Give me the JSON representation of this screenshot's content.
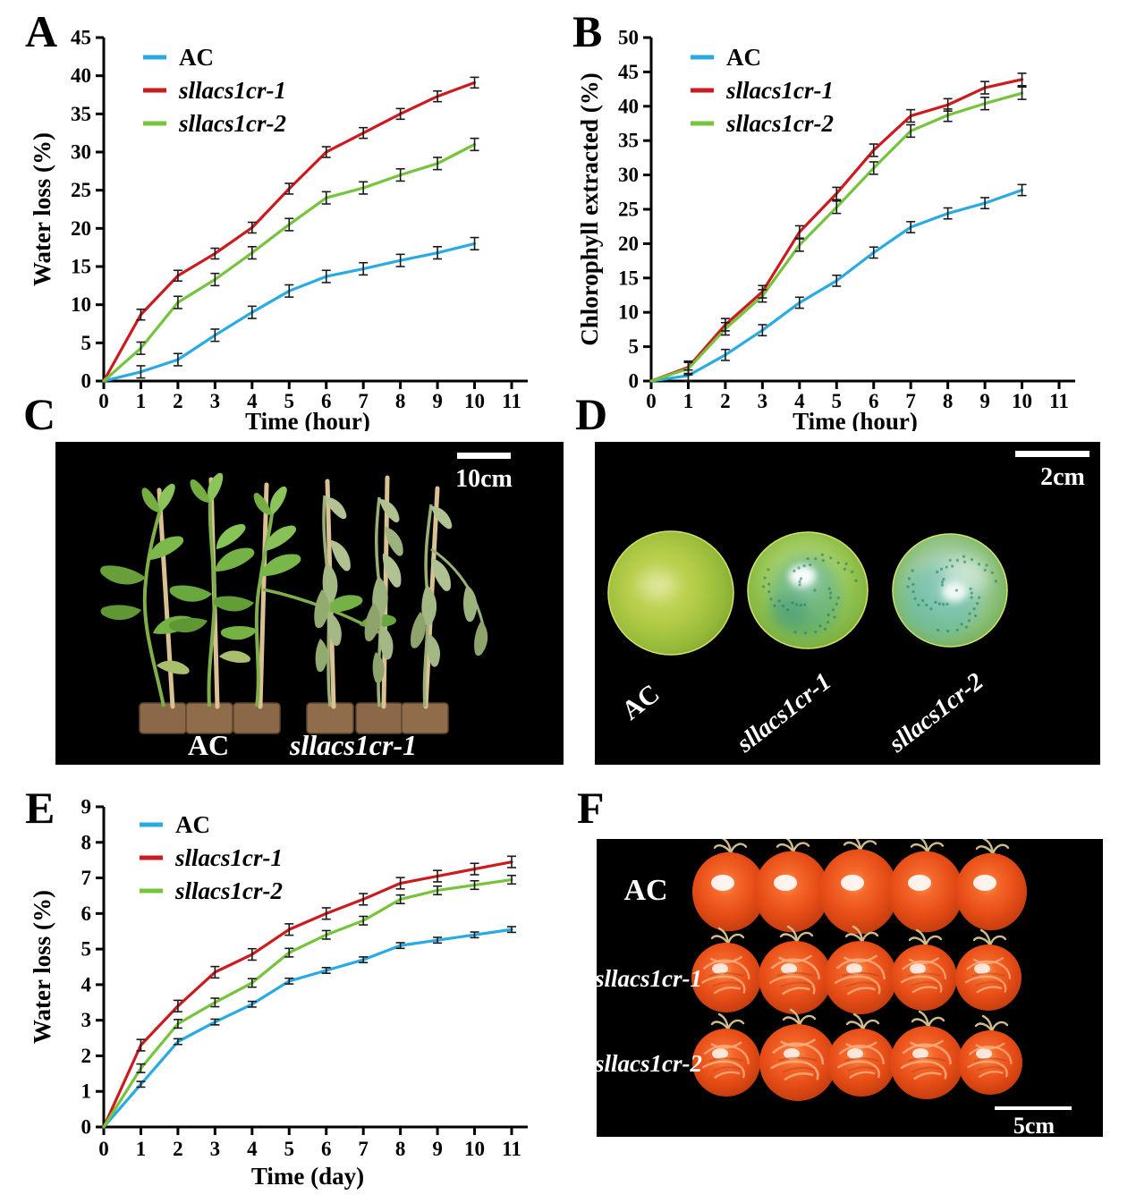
{
  "figure": {
    "panel_letters": [
      "A",
      "B",
      "C",
      "D",
      "E",
      "F"
    ]
  },
  "chart_data": [
    {
      "id": "A",
      "type": "line",
      "title": "",
      "xlabel": "Time (hour)",
      "ylabel": "Water loss (%)",
      "x": [
        0,
        1,
        2,
        3,
        4,
        5,
        6,
        7,
        8,
        9,
        10
      ],
      "xticks": [
        0,
        1,
        2,
        3,
        4,
        5,
        6,
        7,
        8,
        9,
        10,
        11
      ],
      "xlim": [
        0,
        11.5
      ],
      "ylim": [
        0,
        45
      ],
      "ytick_step": 5,
      "grid": false,
      "legend_position": "top-left",
      "series": [
        {
          "name": "AC",
          "color": "#29abe2",
          "values": [
            0,
            1.2,
            2.8,
            6,
            9,
            11.8,
            13.7,
            14.7,
            15.8,
            16.8,
            18
          ],
          "err": 0.8
        },
        {
          "name": "sllacs1cr-1",
          "color": "#cb1b1e",
          "values": [
            0,
            8.7,
            13.8,
            16.7,
            20.1,
            25.2,
            30,
            32.5,
            35,
            37.3,
            39.1
          ],
          "err": 0.7
        },
        {
          "name": "sllacs1cr-2",
          "color": "#76c33c",
          "values": [
            0,
            4.3,
            10.3,
            13.3,
            16.8,
            20.5,
            24,
            25.3,
            27,
            28.5,
            31
          ],
          "err": 0.8
        }
      ]
    },
    {
      "id": "B",
      "type": "line",
      "title": "",
      "xlabel": "Time (hour)",
      "ylabel": "Chlorophyll extracted (%)",
      "x": [
        0,
        1,
        2,
        3,
        4,
        5,
        6,
        7,
        8,
        9,
        10
      ],
      "xticks": [
        0,
        1,
        2,
        3,
        4,
        5,
        6,
        7,
        8,
        9,
        10,
        11
      ],
      "xlim": [
        0,
        11.5
      ],
      "ylim": [
        0,
        50
      ],
      "ytick_step": 5,
      "grid": false,
      "legend_position": "top-left",
      "series": [
        {
          "name": "AC",
          "color": "#29abe2",
          "values": [
            0,
            0.8,
            3.8,
            7.4,
            11.4,
            14.6,
            18.7,
            22.4,
            24.4,
            25.9,
            27.8
          ],
          "err": 0.8
        },
        {
          "name": "sllacs1cr-1",
          "color": "#cb1b1e",
          "values": [
            0,
            2,
            8.2,
            13,
            21.7,
            27.3,
            33.6,
            38.6,
            40.2,
            42.7,
            43.9
          ],
          "err": 0.9
        },
        {
          "name": "sllacs1cr-2",
          "color": "#76c33c",
          "values": [
            0,
            1.8,
            7.6,
            12.4,
            19.8,
            25.3,
            31,
            36.4,
            38.7,
            40.4,
            41.9
          ],
          "err": 0.9
        }
      ]
    },
    {
      "id": "E",
      "type": "line",
      "title": "",
      "xlabel": "Time (day)",
      "ylabel": "Water loss (%)",
      "x": [
        0,
        1,
        2,
        3,
        4,
        5,
        6,
        7,
        8,
        9,
        10,
        11
      ],
      "xticks": [
        0,
        1,
        2,
        3,
        4,
        5,
        6,
        7,
        8,
        9,
        10,
        11
      ],
      "xlim": [
        0,
        11.5
      ],
      "ylim": [
        0,
        9
      ],
      "ytick_step": 1,
      "grid": false,
      "legend_position": "top-left",
      "series": [
        {
          "name": "AC",
          "color": "#29abe2",
          "values": [
            0,
            1.2,
            2.4,
            2.95,
            3.45,
            4.1,
            4.4,
            4.7,
            5.1,
            5.25,
            5.4,
            5.55
          ],
          "err": 0.08
        },
        {
          "name": "sllacs1cr-1",
          "color": "#cb1b1e",
          "values": [
            0,
            2.3,
            3.4,
            4.35,
            4.85,
            5.55,
            6,
            6.4,
            6.85,
            7.05,
            7.25,
            7.45
          ],
          "err": 0.16
        },
        {
          "name": "sllacs1cr-2",
          "color": "#76c33c",
          "values": [
            0,
            1.65,
            2.9,
            3.5,
            4.05,
            4.9,
            5.4,
            5.8,
            6.4,
            6.65,
            6.8,
            6.95
          ],
          "err": 0.12
        }
      ]
    }
  ],
  "photos": {
    "c": {
      "scale_label": "10cm",
      "labels": [
        "AC",
        "sllacs1cr-1"
      ]
    },
    "d": {
      "scale_label": "2cm",
      "labels": [
        "AC",
        "sllacs1cr-1",
        "sllacs1cr-2"
      ]
    },
    "f": {
      "scale_label": "5cm",
      "labels": [
        "AC",
        "sllacs1cr-1",
        "sllacs1cr-2"
      ]
    }
  }
}
